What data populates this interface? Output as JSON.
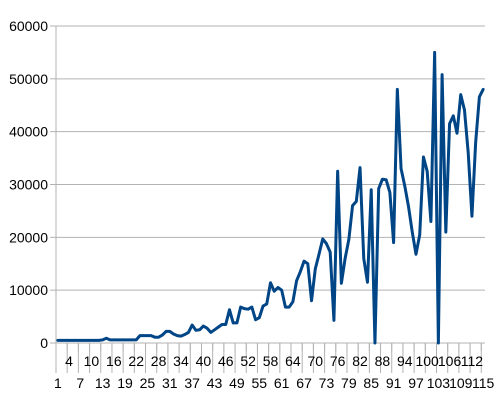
{
  "chart_data": {
    "type": "line",
    "title": "",
    "xlabel": "",
    "ylabel": "",
    "ylim": [
      0,
      60000
    ],
    "yticks": [
      0,
      10000,
      20000,
      30000,
      40000,
      50000,
      60000
    ],
    "ytick_labels": [
      "0",
      "10000",
      "20000",
      "30000",
      "40000",
      "50000",
      "60000"
    ],
    "xlim": [
      1,
      115
    ],
    "xticks_row1": [
      4,
      7,
      10,
      13,
      16,
      19,
      22,
      25,
      28,
      31,
      34,
      37,
      40,
      43,
      46,
      49,
      52,
      55,
      58,
      61,
      64,
      67,
      70,
      73,
      76,
      79,
      82,
      85,
      88,
      91,
      94,
      97,
      100,
      103,
      106,
      109,
      112,
      115
    ],
    "xticks_row2": [
      1,
      4,
      7,
      10,
      13,
      16,
      19,
      22,
      25,
      28,
      31,
      34,
      37,
      40,
      43,
      46,
      49,
      52,
      55,
      58,
      61,
      64,
      67,
      70,
      73,
      76,
      79,
      82,
      85,
      88,
      91,
      94,
      97,
      100,
      103,
      106,
      109,
      112,
      115
    ],
    "xtick_labels_row1": [
      "4",
      "10",
      "16",
      "22",
      "28",
      "34",
      "40",
      "46",
      "52",
      "58",
      "64",
      "70",
      "76",
      "82",
      "88",
      "94",
      "100",
      "106",
      "112"
    ],
    "xtick_labels_row2": [
      "1",
      "7",
      "13",
      "19",
      "25",
      "31",
      "37",
      "43",
      "49",
      "55",
      "61",
      "67",
      "73",
      "79",
      "85",
      "91",
      "97",
      "103",
      "109",
      "115"
    ],
    "grid": true,
    "legend": "none",
    "line_color": "#004586",
    "series": [
      {
        "x": [
          1,
          2,
          3,
          4,
          5,
          6,
          7,
          8,
          9,
          10,
          11,
          12,
          13,
          14,
          15,
          16,
          17,
          18,
          19,
          20,
          21,
          22,
          23,
          24,
          25,
          26,
          27,
          28,
          29,
          30,
          31,
          32,
          33,
          34,
          35,
          36,
          37,
          38,
          39,
          40,
          41,
          42,
          43,
          44,
          45,
          46,
          47,
          48,
          49,
          50,
          51,
          52,
          53,
          54,
          55,
          56,
          57,
          58,
          59,
          60,
          61,
          62,
          63,
          64,
          65,
          66,
          67,
          68,
          69,
          70,
          71,
          72,
          73,
          74,
          75,
          76,
          77,
          78,
          79,
          80,
          81,
          82,
          83,
          84,
          85,
          86,
          87,
          88,
          89,
          90,
          91,
          92,
          93,
          94,
          95,
          96,
          97,
          98,
          99,
          100,
          101,
          102,
          103,
          104,
          105,
          106,
          107,
          108,
          109,
          110,
          111,
          112,
          113,
          114,
          115
        ],
        "values": [
          500,
          500,
          500,
          500,
          500,
          500,
          500,
          500,
          500,
          500,
          500,
          500,
          600,
          900,
          600,
          600,
          600,
          600,
          600,
          600,
          600,
          600,
          1400,
          1400,
          1400,
          1400,
          1100,
          1100,
          1500,
          2200,
          2200,
          1700,
          1400,
          1300,
          1600,
          2000,
          3400,
          2400,
          2500,
          3200,
          2800,
          2000,
          2500,
          3000,
          3500,
          3500,
          6300,
          3800,
          3800,
          6800,
          6500,
          6400,
          6800,
          4400,
          4800,
          7000,
          7400,
          11400,
          9800,
          10500,
          10000,
          6800,
          6800,
          7800,
          11800,
          13500,
          15500,
          15000,
          8000,
          14000,
          16800,
          19700,
          18800,
          17200,
          4300,
          32500,
          11300,
          16000,
          19600,
          26000,
          26800,
          33200,
          16000,
          11500,
          29000,
          0,
          29200,
          31000,
          30900,
          28500,
          19000,
          48000,
          33000,
          29700,
          25800,
          21000,
          16800,
          20500,
          35200,
          32500,
          23000,
          55000,
          0,
          50800,
          21000,
          41500,
          43000,
          39700,
          47000,
          44100,
          36000,
          24000,
          38000,
          46600,
          48000
        ]
      }
    ]
  }
}
